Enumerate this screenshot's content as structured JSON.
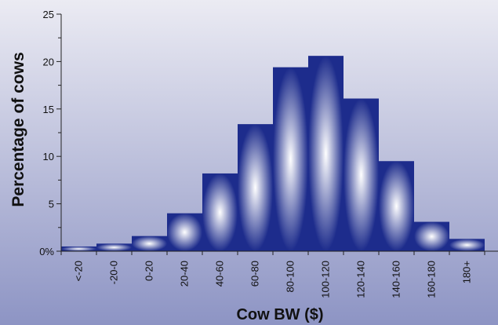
{
  "chart_data": {
    "type": "bar",
    "xlabel": "Cow BW ($)",
    "ylabel": "Percentage of cows",
    "ylim": [
      0,
      25
    ],
    "ytick_values": [
      0,
      5,
      10,
      15,
      20,
      25
    ],
    "ytick_labels": [
      "0%",
      "5",
      "10",
      "15",
      "20",
      "25"
    ],
    "categories": [
      "<-20",
      "-20-0",
      "0-20",
      "20-40",
      "40-60",
      "60-80",
      "80-100",
      "100-120",
      "120-140",
      "140-160",
      "160-180",
      "180+"
    ],
    "values": [
      0.5,
      0.8,
      1.6,
      4.0,
      8.2,
      13.4,
      19.4,
      20.6,
      16.1,
      9.5,
      3.1,
      1.3
    ],
    "grid": false,
    "legend": "none"
  },
  "colors": {
    "background_top": "#ebebf3",
    "background_bottom": "#8d94c4",
    "bar_edge": "#1d2c8c",
    "bar_center": "#ffffff",
    "axis": "#222222"
  }
}
